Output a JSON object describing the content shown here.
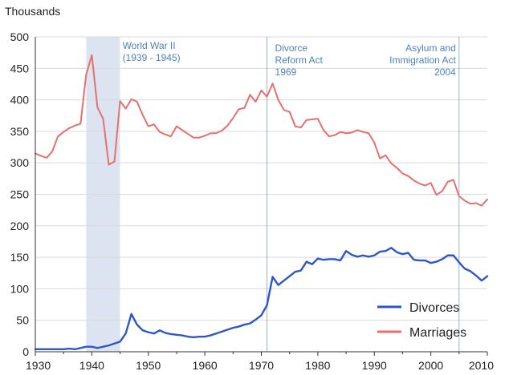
{
  "chart_data": {
    "type": "line",
    "ylabel": "Thousands",
    "xlim": [
      1930,
      2010
    ],
    "ylim": [
      0,
      500
    ],
    "x_ticks": [
      "1930",
      "1940",
      "1950",
      "1960",
      "1970",
      "1980",
      "1990",
      "2000",
      "2010"
    ],
    "y_ticks": [
      "0",
      "50",
      "100",
      "150",
      "200",
      "250",
      "300",
      "350",
      "400",
      "450",
      "500"
    ],
    "grid": "horizontal",
    "legend_position": "bottom-right",
    "annotations": [
      {
        "text": "World War II",
        "text2": "(1939 - 1945)",
        "span": [
          1939,
          1945
        ]
      },
      {
        "text": "Divorce",
        "text2": "Reform Act",
        "text3": "1969",
        "at": 1971
      },
      {
        "text": "Asylum and",
        "text2": "Immigration Act",
        "text3": "2004",
        "at": 2005
      }
    ],
    "series": [
      {
        "name": "Divorces",
        "color": "#2e57c5",
        "points": [
          [
            1930,
            4
          ],
          [
            1931,
            4
          ],
          [
            1932,
            4
          ],
          [
            1933,
            4
          ],
          [
            1934,
            4
          ],
          [
            1935,
            4
          ],
          [
            1936,
            5
          ],
          [
            1937,
            4
          ],
          [
            1938,
            6
          ],
          [
            1939,
            8
          ],
          [
            1940,
            8
          ],
          [
            1941,
            6
          ],
          [
            1942,
            8
          ],
          [
            1943,
            10
          ],
          [
            1944,
            13
          ],
          [
            1945,
            16
          ],
          [
            1946,
            29
          ],
          [
            1947,
            60
          ],
          [
            1948,
            43
          ],
          [
            1949,
            34
          ],
          [
            1950,
            31
          ],
          [
            1951,
            29
          ],
          [
            1952,
            34
          ],
          [
            1953,
            30
          ],
          [
            1954,
            28
          ],
          [
            1955,
            27
          ],
          [
            1956,
            26
          ],
          [
            1957,
            24
          ],
          [
            1958,
            23
          ],
          [
            1959,
            24
          ],
          [
            1960,
            24
          ],
          [
            1961,
            26
          ],
          [
            1962,
            29
          ],
          [
            1963,
            32
          ],
          [
            1964,
            35
          ],
          [
            1965,
            38
          ],
          [
            1966,
            40
          ],
          [
            1967,
            43
          ],
          [
            1968,
            45
          ],
          [
            1969,
            51
          ],
          [
            1970,
            58
          ],
          [
            1971,
            74
          ],
          [
            1972,
            119
          ],
          [
            1973,
            106
          ],
          [
            1974,
            113
          ],
          [
            1975,
            120
          ],
          [
            1976,
            127
          ],
          [
            1977,
            129
          ],
          [
            1978,
            143
          ],
          [
            1979,
            139
          ],
          [
            1980,
            148
          ],
          [
            1981,
            146
          ],
          [
            1982,
            147
          ],
          [
            1983,
            147
          ],
          [
            1984,
            145
          ],
          [
            1985,
            160
          ],
          [
            1986,
            154
          ],
          [
            1987,
            151
          ],
          [
            1988,
            153
          ],
          [
            1989,
            151
          ],
          [
            1990,
            153
          ],
          [
            1991,
            159
          ],
          [
            1992,
            160
          ],
          [
            1993,
            165
          ],
          [
            1994,
            158
          ],
          [
            1995,
            155
          ],
          [
            1996,
            157
          ],
          [
            1997,
            146
          ],
          [
            1998,
            145
          ],
          [
            1999,
            145
          ],
          [
            2000,
            141
          ],
          [
            2001,
            143
          ],
          [
            2002,
            147
          ],
          [
            2003,
            153
          ],
          [
            2004,
            153
          ],
          [
            2005,
            142
          ],
          [
            2006,
            132
          ],
          [
            2007,
            128
          ],
          [
            2008,
            121
          ],
          [
            2009,
            113
          ],
          [
            2010,
            120
          ]
        ]
      },
      {
        "name": "Marriages",
        "color": "#e5706d",
        "points": [
          [
            1930,
            315
          ],
          [
            1931,
            311
          ],
          [
            1932,
            308
          ],
          [
            1933,
            318
          ],
          [
            1934,
            342
          ],
          [
            1935,
            349
          ],
          [
            1936,
            355
          ],
          [
            1937,
            359
          ],
          [
            1938,
            362
          ],
          [
            1939,
            440
          ],
          [
            1940,
            471
          ],
          [
            1941,
            388
          ],
          [
            1942,
            370
          ],
          [
            1943,
            297
          ],
          [
            1944,
            302
          ],
          [
            1945,
            398
          ],
          [
            1946,
            386
          ],
          [
            1947,
            401
          ],
          [
            1948,
            397
          ],
          [
            1949,
            376
          ],
          [
            1950,
            358
          ],
          [
            1951,
            361
          ],
          [
            1952,
            349
          ],
          [
            1953,
            345
          ],
          [
            1954,
            342
          ],
          [
            1955,
            358
          ],
          [
            1956,
            352
          ],
          [
            1957,
            346
          ],
          [
            1958,
            340
          ],
          [
            1959,
            340
          ],
          [
            1960,
            343
          ],
          [
            1961,
            347
          ],
          [
            1962,
            347
          ],
          [
            1963,
            351
          ],
          [
            1964,
            359
          ],
          [
            1965,
            371
          ],
          [
            1966,
            385
          ],
          [
            1967,
            387
          ],
          [
            1968,
            408
          ],
          [
            1969,
            397
          ],
          [
            1970,
            415
          ],
          [
            1971,
            405
          ],
          [
            1972,
            426
          ],
          [
            1973,
            400
          ],
          [
            1974,
            384
          ],
          [
            1975,
            381
          ],
          [
            1976,
            358
          ],
          [
            1977,
            356
          ],
          [
            1978,
            368
          ],
          [
            1979,
            369
          ],
          [
            1980,
            370
          ],
          [
            1981,
            352
          ],
          [
            1982,
            342
          ],
          [
            1983,
            344
          ],
          [
            1984,
            349
          ],
          [
            1985,
            347
          ],
          [
            1986,
            348
          ],
          [
            1987,
            352
          ],
          [
            1988,
            349
          ],
          [
            1989,
            347
          ],
          [
            1990,
            332
          ],
          [
            1991,
            307
          ],
          [
            1992,
            312
          ],
          [
            1993,
            299
          ],
          [
            1994,
            292
          ],
          [
            1995,
            283
          ],
          [
            1996,
            279
          ],
          [
            1997,
            272
          ],
          [
            1998,
            267
          ],
          [
            1999,
            264
          ],
          [
            2000,
            268
          ],
          [
            2001,
            249
          ],
          [
            2002,
            255
          ],
          [
            2003,
            270
          ],
          [
            2004,
            273
          ],
          [
            2005,
            247
          ],
          [
            2006,
            240
          ],
          [
            2007,
            235
          ],
          [
            2008,
            236
          ],
          [
            2009,
            232
          ],
          [
            2010,
            242
          ]
        ]
      }
    ],
    "colors": {
      "shade": "#dce4f2",
      "annotation": "#4f81bd",
      "grid": "#d9d9d9",
      "axis": "#333333"
    }
  }
}
